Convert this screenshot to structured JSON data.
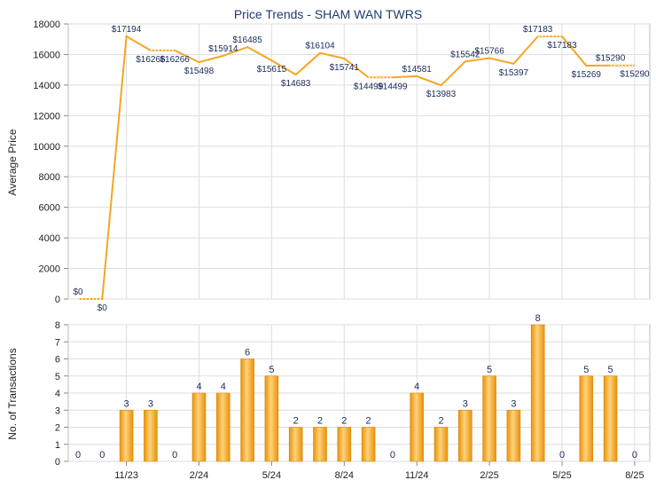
{
  "chart_data": [
    {
      "type": "line",
      "title": "Price Trends - SHAM WAN TWRS",
      "ylabel": "Average Price",
      "ylim": [
        0,
        18000
      ],
      "yticks": [
        0,
        2000,
        4000,
        6000,
        8000,
        10000,
        12000,
        14000,
        16000,
        18000
      ],
      "grid": true,
      "color": "#f5a623",
      "values": [
        0,
        0,
        17194,
        16266,
        16266,
        15498,
        15914,
        16485,
        15615,
        14683,
        16104,
        15741,
        14499,
        14499,
        14581,
        13983,
        15542,
        15766,
        15397,
        17183,
        17183,
        15269,
        15290,
        15290
      ],
      "labels": [
        "$0",
        "$0",
        "$17194",
        "$16266",
        "$16266",
        "$15498",
        "$15914",
        "$16485",
        "$15615",
        "$14683",
        "$16104",
        "$15741",
        "$14499",
        "$14499",
        "$14581",
        "$13983",
        "$15542",
        "$15766",
        "$15397",
        "$17183",
        "$17183",
        "$15269",
        "$15290",
        "$15290"
      ]
    },
    {
      "type": "bar",
      "ylabel": "No. of Transactions",
      "ylim": [
        0,
        8
      ],
      "yticks": [
        "0",
        "1",
        "2",
        "3",
        "4",
        "5",
        "6",
        "7",
        "8"
      ],
      "color": "#f5a623",
      "values": [
        0,
        0,
        3,
        3,
        0,
        4,
        4,
        6,
        5,
        2,
        2,
        2,
        2,
        0,
        4,
        2,
        3,
        5,
        3,
        8,
        0,
        5,
        5,
        0
      ],
      "labels": [
        "0",
        "0",
        "3",
        "3",
        "0",
        "4",
        "4",
        "6",
        "5",
        "2",
        "2",
        "2",
        "2",
        "0",
        "4",
        "2",
        "3",
        "5",
        "3",
        "8",
        "0",
        "5",
        "5",
        "0"
      ],
      "xticks": [
        {
          "index": 2,
          "label": "11/23"
        },
        {
          "index": 5,
          "label": "2/24"
        },
        {
          "index": 8,
          "label": "5/24"
        },
        {
          "index": 11,
          "label": "8/24"
        },
        {
          "index": 14,
          "label": "11/24"
        },
        {
          "index": 17,
          "label": "2/25"
        },
        {
          "index": 20,
          "label": "5/25"
        },
        {
          "index": 23,
          "label": "8/25"
        }
      ]
    }
  ]
}
